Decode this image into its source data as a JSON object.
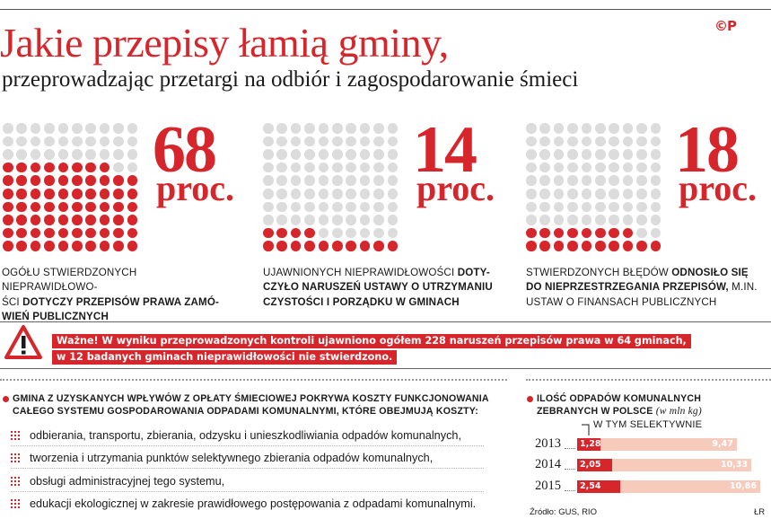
{
  "logo": "©P",
  "title": "Jakie przepisy łamią gminy,",
  "subtitle": "przeprowadzając przetargi na odbiór i zagospodarowanie śmieci",
  "colors": {
    "accent": "#d7262b",
    "dot_off": "#dcdcdc",
    "bar_total": "#f6cbbc"
  },
  "chart_data": [
    {
      "type": "waffle",
      "value": 68,
      "value_label": "68",
      "unit": "proc.",
      "text_plain_1": "Ogółu stwierdzonych nieprawidłowo-",
      "text_plain_2": "ści ",
      "text_bold_2": "dotyczy przepisów prawa zamó-",
      "text_bold_3": "wień publicznych",
      "text_plain_3": ""
    },
    {
      "type": "waffle",
      "value": 14,
      "value_label": "14",
      "unit": "proc.",
      "text_plain_1": "Ujawnionych nieprawidłowości ",
      "text_bold_1": "doty-",
      "text_bold_2": "czyło naruszeń ustawy o utrzymaniu",
      "text_bold_3": "czystości i porządku w gminach"
    },
    {
      "type": "waffle",
      "value": 18,
      "value_label": "18",
      "unit": "proc.",
      "text_plain_1": "Stwierdzonych błędów ",
      "text_bold_1": "odnosiło się",
      "text_bold_2": "do nieprzestrzegania przepisów,",
      "text_plain_2": " m.in.",
      "text_plain_3": "ustaw o finansach publicznych"
    },
    {
      "type": "bar",
      "title": "Ilość odpadów komunalnych zebranych w Polsce",
      "unit_note": "(w mln kg)",
      "legend": "w tym selektywnie",
      "categories": [
        "2013",
        "2014",
        "2015"
      ],
      "series": [
        {
          "name": "w tym selektywnie",
          "values": [
            1.28,
            2.05,
            2.54
          ],
          "labels": [
            "1,28",
            "2,05",
            "2,54"
          ]
        },
        {
          "values": [
            9.47,
            10.33,
            10.86
          ],
          "labels": [
            "9,47",
            "10,33",
            "10,86"
          ]
        }
      ],
      "xlim": [
        0,
        10.86
      ]
    }
  ],
  "warning": {
    "line1": "Ważne! W wyniku przeprowadzonych kontroli ujawniono ogółem 228 naruszeń przepisów prawa w 64 gminach,",
    "line2": "w 12 badanych gminach nieprawidłowości nie stwierdzono."
  },
  "costs": {
    "heading_1": "Gmina z uzyskanych wpływów z opłaty śmieciowej pokrywa koszty  funkcjonowania",
    "heading_2": "całego systemu gospodarowania odpadami komunalnymi, które obejmują koszty:",
    "items": [
      "odbierania, transportu, zbierania, odzysku i unieszkodliwiania odpadów komunalnych,",
      "tworzenia i utrzymania punktów selektywnego zbierania odpadów komunalnych,",
      "obsługi administracyjnej tego systemu,",
      "edukacji ekologicznej w zakresie prawidłowego postępowania z odpadami komunalnymi."
    ]
  },
  "source": "Źródło: GUS, RIO",
  "author": "ŁR"
}
